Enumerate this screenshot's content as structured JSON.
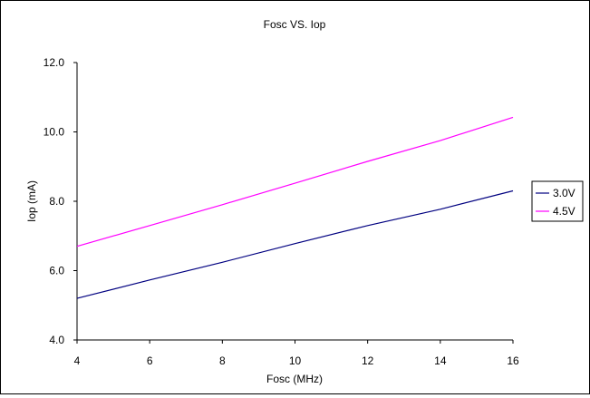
{
  "chart_data": {
    "type": "line",
    "title": "Fosc VS. Iop",
    "xlabel": "Fosc (MHz)",
    "ylabel": "Iop (mA)",
    "xlim": [
      4,
      16
    ],
    "ylim": [
      4.0,
      12.0
    ],
    "x_ticks": [
      "4",
      "6",
      "8",
      "10",
      "12",
      "14",
      "16"
    ],
    "y_ticks": [
      "4.0",
      "6.0",
      "8.0",
      "10.0",
      "12.0"
    ],
    "grid": false,
    "legend_position": "right",
    "x": [
      4,
      6,
      8,
      10,
      12,
      14,
      16
    ],
    "series": [
      {
        "name": "3.0V",
        "color": "#000080",
        "values": [
          5.2,
          5.73,
          6.24,
          6.78,
          7.3,
          7.77,
          8.3
        ]
      },
      {
        "name": "4.5V",
        "color": "#ff00ff",
        "values": [
          6.7,
          7.3,
          7.9,
          8.52,
          9.15,
          9.75,
          10.42
        ]
      }
    ]
  }
}
